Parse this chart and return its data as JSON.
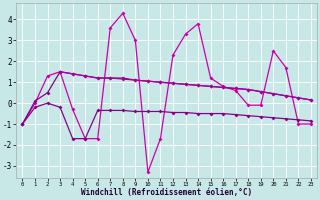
{
  "background_color": "#c8e8e8",
  "line_color_main": "#cc00aa",
  "line_color_dark": "#880088",
  "xlabel": "Windchill (Refroidissement éolien,°C)",
  "xlim": [
    -0.5,
    23.5
  ],
  "ylim": [
    -3.6,
    4.8
  ],
  "yticks": [
    -3,
    -2,
    -1,
    0,
    1,
    2,
    3,
    4
  ],
  "xticks": [
    0,
    1,
    2,
    3,
    4,
    5,
    6,
    7,
    8,
    9,
    10,
    11,
    12,
    13,
    14,
    15,
    16,
    17,
    18,
    19,
    20,
    21,
    22,
    23
  ],
  "series": [
    {
      "x": [
        0,
        1,
        2,
        3,
        4,
        5,
        6,
        7,
        8,
        9,
        10,
        11,
        12,
        13,
        14,
        15,
        16,
        17,
        18,
        19,
        20,
        21,
        22,
        23
      ],
      "y": [
        -1.0,
        0.0,
        1.3,
        1.5,
        -0.3,
        -1.7,
        -1.7,
        3.6,
        4.3,
        3.0,
        -3.3,
        -1.7,
        2.3,
        3.3,
        3.8,
        1.2,
        0.8,
        0.6,
        -0.1,
        -0.1,
        2.5,
        1.7,
        -1.0,
        -1.0
      ],
      "color": "#cc00aa",
      "lw": 0.9
    },
    {
      "x": [
        0,
        1,
        2,
        3,
        4,
        5,
        6,
        7,
        8,
        9,
        10,
        11,
        12,
        13,
        14,
        15,
        16,
        17,
        18,
        19,
        20,
        21,
        22,
        23
      ],
      "y": [
        -1.0,
        0.1,
        0.5,
        1.5,
        1.4,
        1.3,
        1.2,
        1.2,
        1.2,
        1.1,
        1.05,
        1.0,
        0.95,
        0.9,
        0.85,
        0.8,
        0.75,
        0.7,
        0.65,
        0.55,
        0.45,
        0.35,
        0.25,
        0.15
      ],
      "color": "#880088",
      "lw": 0.9
    },
    {
      "x": [
        0,
        1,
        2,
        3,
        4,
        5,
        6,
        7,
        8,
        9,
        10,
        11,
        12,
        13,
        14,
        15,
        16,
        17,
        18,
        19,
        20,
        21,
        22,
        23
      ],
      "y": [
        -1.0,
        -0.2,
        0.0,
        -0.2,
        -1.7,
        -1.7,
        -0.35,
        -0.35,
        -0.35,
        -0.4,
        -0.4,
        -0.4,
        -0.45,
        -0.45,
        -0.5,
        -0.5,
        -0.5,
        -0.55,
        -0.6,
        -0.65,
        -0.7,
        -0.75,
        -0.8,
        -0.85
      ],
      "color": "#880088",
      "lw": 0.9
    },
    {
      "x": [
        3,
        4,
        5,
        6,
        7,
        8,
        9,
        10,
        11,
        12,
        13,
        14,
        15,
        16,
        17,
        18,
        19,
        20,
        21,
        22,
        23
      ],
      "y": [
        1.5,
        1.4,
        1.3,
        1.2,
        1.2,
        1.15,
        1.1,
        1.05,
        1.0,
        0.95,
        0.9,
        0.85,
        0.8,
        0.75,
        0.7,
        0.65,
        0.55,
        0.45,
        0.35,
        0.25,
        0.15
      ],
      "color": "#aa0099",
      "lw": 0.9
    }
  ],
  "marker": "D",
  "markersize": 2.0
}
